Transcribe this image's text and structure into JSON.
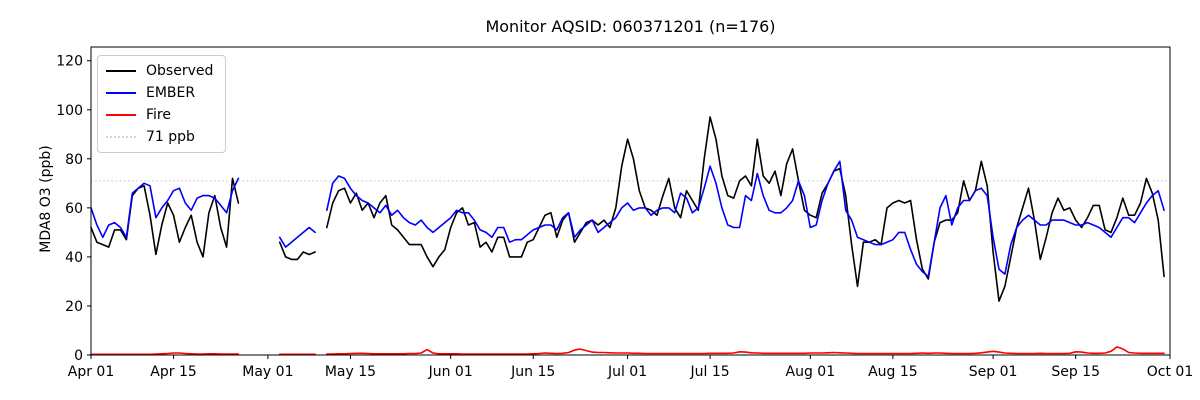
{
  "chart_data": {
    "type": "line",
    "title": "Monitor AQSID: 060371201 (n=176)",
    "xlabel": "",
    "ylabel": "MDA8 O3 (ppb)",
    "ylim": [
      0,
      125.6
    ],
    "y_ticks": [
      0,
      20,
      40,
      60,
      80,
      100,
      120
    ],
    "x_range_days": 183,
    "x_start_label": "Apr 01",
    "x_ticks": [
      {
        "label": "Apr 01",
        "day": 0
      },
      {
        "label": "Apr 15",
        "day": 14
      },
      {
        "label": "May 01",
        "day": 30
      },
      {
        "label": "May 15",
        "day": 44
      },
      {
        "label": "Jun 01",
        "day": 61
      },
      {
        "label": "Jun 15",
        "day": 75
      },
      {
        "label": "Jul 01",
        "day": 91
      },
      {
        "label": "Jul 15",
        "day": 105
      },
      {
        "label": "Aug 01",
        "day": 122
      },
      {
        "label": "Aug 15",
        "day": 136
      },
      {
        "label": "Sep 01",
        "day": 153
      },
      {
        "label": "Sep 15",
        "day": 167
      },
      {
        "label": "Oct 01",
        "day": 183
      }
    ],
    "reference_line": {
      "value": 71,
      "label": "71 ppb",
      "color": "#d3d3d3",
      "style": "dotted"
    },
    "grid": "off",
    "legend_position": "upper left",
    "missing_data_note": "gaps Apr 27-May 02 and May 10",
    "series": [
      {
        "name": "Observed",
        "color": "#000000",
        "values": [
          52,
          46,
          45,
          44,
          51,
          51,
          47,
          65,
          68,
          69,
          57,
          41,
          53,
          62,
          57,
          46,
          52,
          57,
          46,
          40,
          58,
          65,
          52,
          44,
          72,
          62,
          null,
          null,
          null,
          null,
          null,
          null,
          46,
          40,
          39,
          39,
          42,
          41,
          42,
          null,
          52,
          62,
          67,
          68,
          62,
          66,
          59,
          62,
          56,
          62,
          65,
          53,
          51,
          48,
          45,
          45,
          45,
          40,
          36,
          40,
          43,
          52,
          58,
          60,
          53,
          54,
          44,
          46,
          42,
          48,
          48,
          40,
          40,
          40,
          46,
          47,
          52,
          57,
          58,
          48,
          55,
          58,
          46,
          50,
          54,
          55,
          53,
          55,
          52,
          60,
          77,
          88,
          80,
          67,
          60,
          59,
          57,
          65,
          72,
          60,
          56,
          67,
          63,
          59,
          80,
          97,
          88,
          73,
          65,
          64,
          71,
          73,
          69,
          88,
          73,
          70,
          75,
          65,
          78,
          84,
          71,
          59,
          57,
          56,
          66,
          70,
          75,
          76,
          65,
          45,
          28,
          46,
          46,
          47,
          45,
          60,
          62,
          63,
          62,
          63,
          47,
          35,
          31,
          46,
          54,
          55,
          55,
          58,
          71,
          63,
          67,
          79,
          69,
          42,
          22,
          28,
          40,
          52,
          60,
          68,
          55,
          39,
          48,
          58,
          64,
          59,
          60,
          55,
          52,
          56,
          61,
          61,
          51,
          50,
          56,
          64,
          57,
          57,
          62,
          72,
          66,
          55,
          32
        ]
      },
      {
        "name": "EMBER",
        "color": "#0000ff",
        "values": [
          60,
          53,
          48,
          53,
          54,
          52,
          48,
          66,
          68,
          70,
          69,
          56,
          60,
          63,
          67,
          68,
          62,
          59,
          64,
          65,
          65,
          64,
          61,
          58,
          67,
          72,
          null,
          null,
          null,
          null,
          null,
          null,
          48,
          44,
          46,
          48,
          50,
          52,
          50,
          null,
          59,
          70,
          73,
          72,
          68,
          65,
          63,
          62,
          60,
          58,
          61,
          57,
          59,
          56,
          54,
          53,
          55,
          52,
          50,
          52,
          54,
          56,
          59,
          58,
          58,
          55,
          51,
          50,
          48,
          52,
          52,
          46,
          47,
          47,
          49,
          51,
          52,
          53,
          53,
          51,
          56,
          58,
          48,
          51,
          53,
          55,
          50,
          52,
          54,
          56,
          60,
          62,
          59,
          60,
          60,
          57,
          59,
          60,
          60,
          58,
          66,
          64,
          58,
          60,
          68,
          77,
          70,
          60,
          53,
          52,
          52,
          65,
          63,
          74,
          65,
          59,
          58,
          58,
          60,
          63,
          71,
          65,
          52,
          53,
          63,
          70,
          75,
          79,
          59,
          55,
          48,
          47,
          46,
          45,
          45,
          46,
          47,
          50,
          50,
          43,
          37,
          34,
          32,
          46,
          60,
          65,
          53,
          60,
          63,
          63,
          67,
          68,
          65,
          48,
          35,
          33,
          45,
          52,
          55,
          57,
          55,
          53,
          53,
          55,
          55,
          55,
          54,
          53,
          53,
          54,
          53,
          52,
          50,
          48,
          52,
          56,
          56,
          54,
          58,
          62,
          65,
          67,
          59
        ]
      },
      {
        "name": "Fire",
        "color": "#ff0000",
        "values": [
          0.3,
          0.3,
          0.3,
          0.3,
          0.3,
          0.3,
          0.3,
          0.3,
          0.3,
          0.3,
          0.3,
          0.4,
          0.5,
          0.6,
          0.8,
          0.8,
          0.6,
          0.5,
          0.4,
          0.4,
          0.5,
          0.5,
          0.4,
          0.4,
          0.4,
          0.4,
          null,
          null,
          null,
          null,
          null,
          null,
          0.3,
          0.3,
          0.3,
          0.3,
          0.3,
          0.3,
          0.3,
          null,
          0.4,
          0.4,
          0.5,
          0.5,
          0.6,
          0.7,
          0.7,
          0.6,
          0.5,
          0.5,
          0.5,
          0.5,
          0.5,
          0.5,
          0.6,
          0.6,
          0.8,
          2.2,
          0.8,
          0.5,
          0.5,
          0.5,
          0.5,
          0.4,
          0.4,
          0.4,
          0.4,
          0.4,
          0.4,
          0.4,
          0.4,
          0.4,
          0.4,
          0.4,
          0.4,
          0.5,
          0.6,
          0.8,
          0.7,
          0.6,
          0.7,
          1.0,
          2.0,
          2.4,
          1.8,
          1.2,
          1.0,
          1.0,
          0.9,
          0.8,
          0.8,
          0.8,
          0.7,
          0.7,
          0.6,
          0.6,
          0.6,
          0.6,
          0.6,
          0.6,
          0.6,
          0.6,
          0.6,
          0.6,
          0.6,
          0.7,
          0.7,
          0.7,
          0.7,
          0.8,
          1.3,
          1.2,
          0.9,
          0.8,
          0.7,
          0.7,
          0.7,
          0.7,
          0.7,
          0.7,
          0.7,
          0.7,
          0.8,
          0.8,
          0.8,
          0.9,
          1.0,
          0.9,
          0.8,
          0.7,
          0.6,
          0.6,
          0.6,
          0.6,
          0.6,
          0.6,
          0.6,
          0.6,
          0.6,
          0.6,
          0.7,
          0.8,
          0.7,
          0.8,
          0.8,
          0.7,
          0.6,
          0.6,
          0.6,
          0.6,
          0.7,
          0.9,
          1.2,
          1.5,
          1.2,
          0.8,
          0.7,
          0.6,
          0.6,
          0.6,
          0.6,
          0.7,
          0.6,
          0.6,
          0.6,
          0.6,
          0.7,
          1.3,
          1.2,
          0.8,
          0.7,
          0.7,
          0.8,
          1.5,
          3.3,
          2.5,
          1.0,
          0.8,
          0.7,
          0.7,
          0.7,
          0.7,
          0.7
        ]
      }
    ]
  }
}
